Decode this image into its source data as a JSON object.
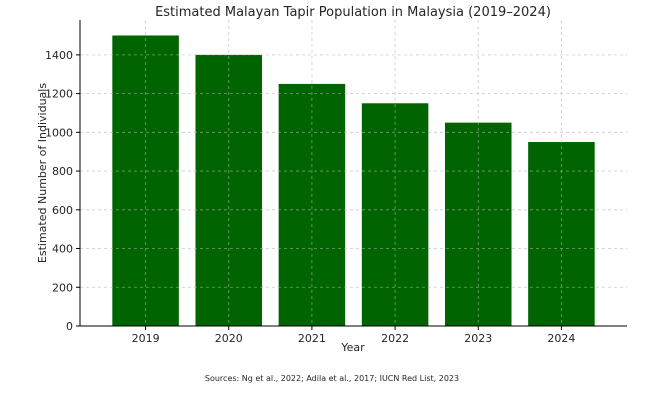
{
  "chart_data": {
    "type": "bar",
    "title": "Estimated Malayan Tapir Population in Malaysia (2019–2024)",
    "xlabel": "Year",
    "ylabel": "Estimated Number of Individuals",
    "categories": [
      "2019",
      "2020",
      "2021",
      "2022",
      "2023",
      "2024"
    ],
    "values": [
      1500,
      1400,
      1250,
      1150,
      1050,
      950
    ],
    "ylim": [
      0,
      1580
    ],
    "yticks": [
      0,
      200,
      400,
      600,
      800,
      1000,
      1200,
      1400
    ],
    "bar_color": "#006400",
    "grid": true,
    "caption": "Sources: Ng et al., 2022; Adila et al., 2017; IUCN Red List, 2023"
  }
}
